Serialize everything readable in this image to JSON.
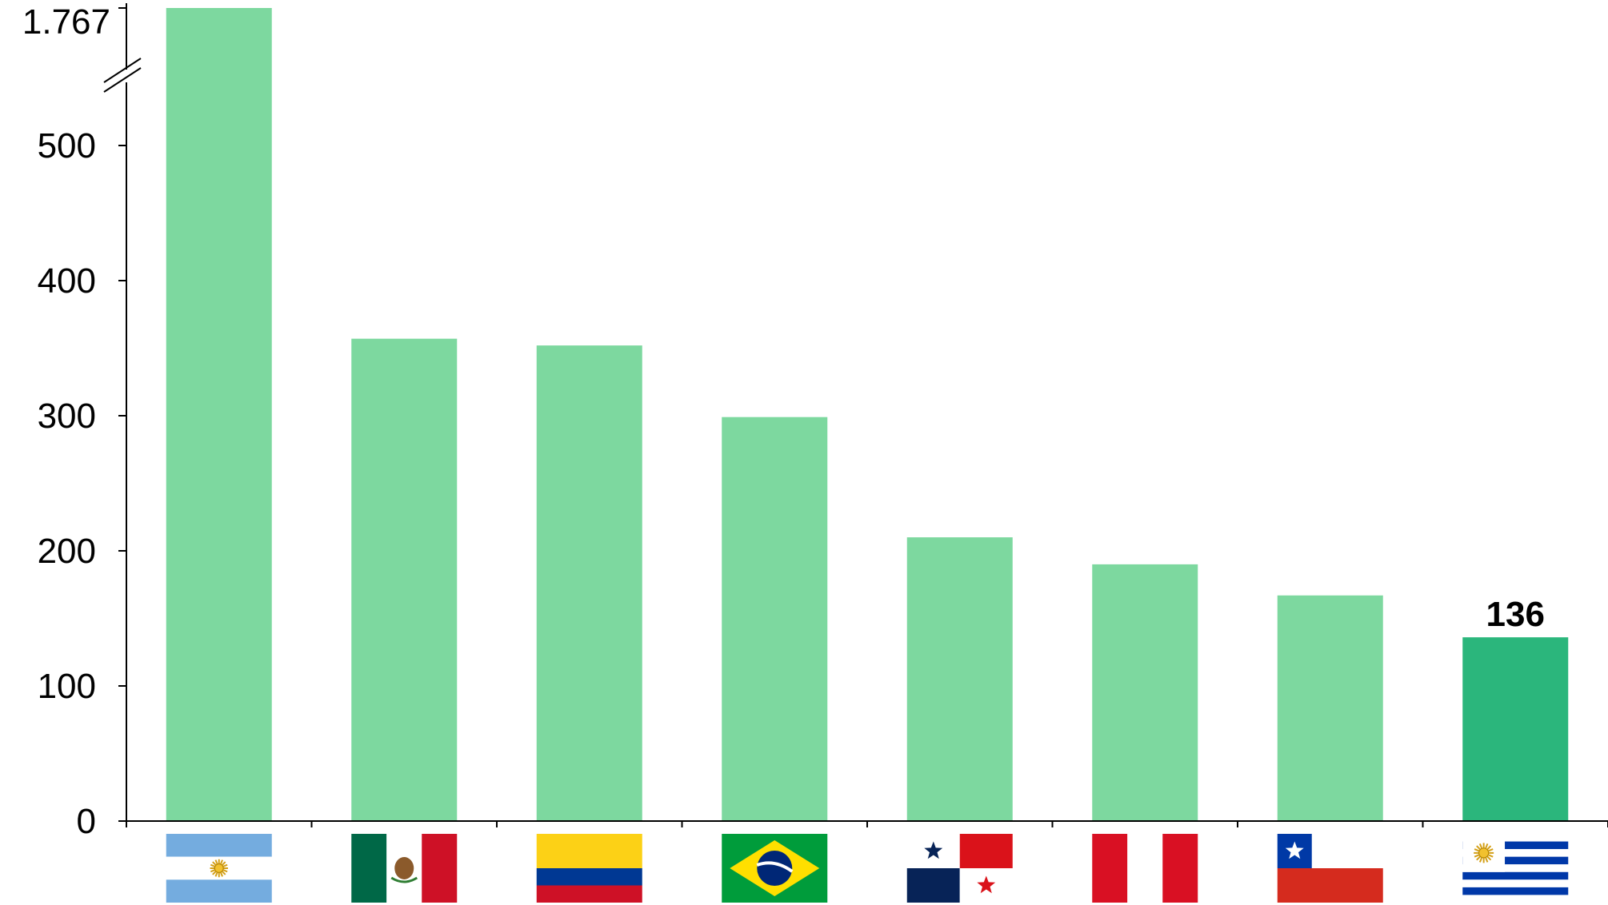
{
  "chart_data": {
    "type": "bar",
    "title": "",
    "xlabel": "",
    "ylabel": "",
    "ylim": [
      0,
      500
    ],
    "axis_break": {
      "top_label": "1.767",
      "top_value": 1767
    },
    "yticks": [
      "0",
      "100",
      "200",
      "300",
      "400",
      "500"
    ],
    "categories": [
      "Argentina",
      "Mexico",
      "Colombia",
      "Brazil",
      "Panama",
      "Peru",
      "Chile",
      "Uruguay"
    ],
    "values": [
      1767,
      357,
      352,
      299,
      210,
      190,
      167,
      136
    ],
    "highlight_index": 7,
    "data_labels": [
      {
        "index": 7,
        "text": "136"
      }
    ],
    "colors": {
      "bar": "#7dd89f",
      "highlight": "#2bb67c",
      "axis": "#000000"
    },
    "category_icons": [
      "argentina-flag-icon",
      "mexico-flag-icon",
      "colombia-flag-icon",
      "brazil-flag-icon",
      "panama-flag-icon",
      "peru-flag-icon",
      "chile-flag-icon",
      "uruguay-flag-icon"
    ],
    "grid": false,
    "legend": "none"
  }
}
